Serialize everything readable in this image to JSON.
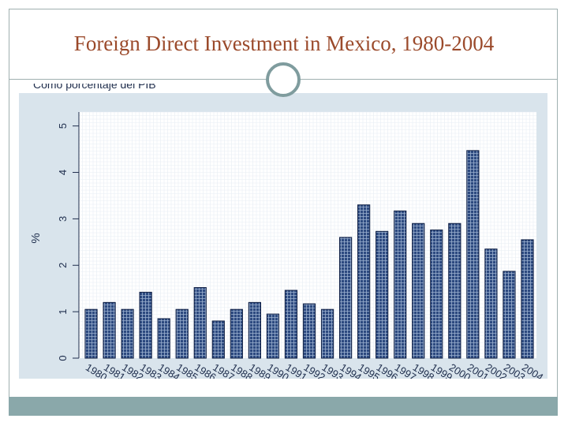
{
  "slide": {
    "title": "Foreign Direct Investment in Mexico, 1980-2004"
  },
  "chart_data": {
    "type": "bar",
    "subtitle": "Como porcentaje del PIB",
    "ylabel": "%",
    "xlabel": "",
    "ylim": [
      0,
      5.3
    ],
    "yticks": [
      "0",
      "1",
      "2",
      "3",
      "4",
      "5"
    ],
    "grid": true,
    "legend": "none",
    "categories": [
      "1980",
      "1981",
      "1982",
      "1983",
      "1984",
      "1985",
      "1986",
      "1987",
      "1988",
      "1989",
      "1990",
      "1991",
      "1992",
      "1993",
      "1994",
      "1995",
      "1996",
      "1997",
      "1998",
      "1999",
      "2000",
      "2001",
      "2002",
      "2003",
      "2004"
    ],
    "values": [
      1.05,
      1.2,
      1.05,
      1.42,
      0.85,
      1.05,
      1.52,
      0.8,
      1.05,
      1.2,
      0.95,
      1.46,
      1.17,
      1.05,
      2.6,
      3.3,
      2.73,
      3.17,
      2.9,
      2.76,
      2.9,
      4.47,
      2.35,
      1.87,
      2.55
    ],
    "colors": {
      "bar_fill": "#2d4a80",
      "bar_pattern": "#9bb0cf",
      "bar_edge": "#0f1f44",
      "grid": "#e7edf3",
      "axis_text": "#1e2d4c",
      "plot_background": "#ffffff",
      "outer_background": "#d9e4ec"
    }
  }
}
